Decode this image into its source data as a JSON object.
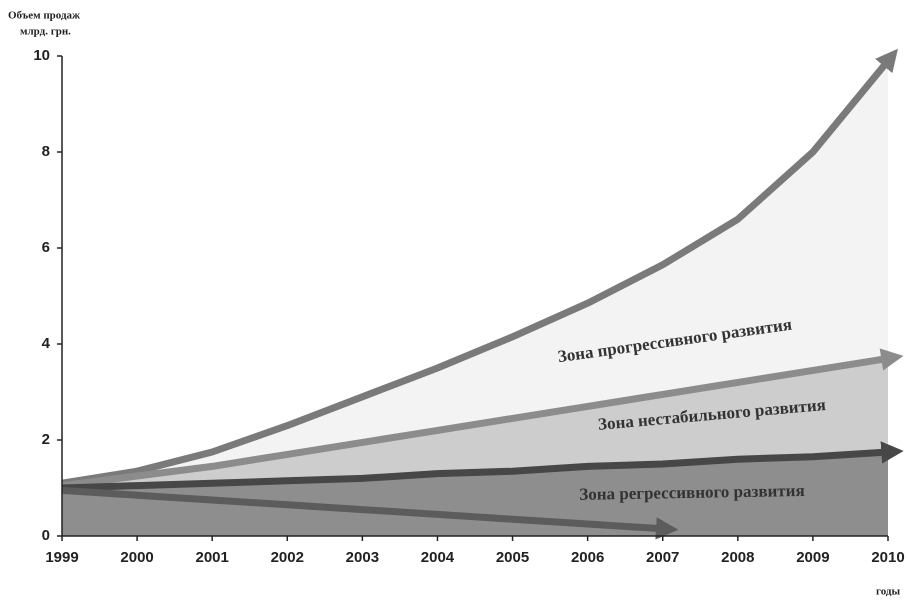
{
  "chart_data": {
    "type": "arrow-zones",
    "ylabel": [
      "Объем продаж",
      "млрд. грн."
    ],
    "xlabel": "годы",
    "x": [
      1999,
      2000,
      2001,
      2002,
      2003,
      2004,
      2005,
      2006,
      2007,
      2008,
      2009,
      2010
    ],
    "xlim": [
      1999,
      2010
    ],
    "xticks": [
      1999,
      2000,
      2001,
      2002,
      2003,
      2004,
      2005,
      2006,
      2007,
      2008,
      2009,
      2010
    ],
    "ylim": [
      0,
      10
    ],
    "yticks": [
      0,
      2,
      4,
      6,
      8,
      10
    ],
    "series": [
      {
        "color": "#7a7a7a",
        "fill": "#f3f3f3",
        "values": [
          1.1,
          1.35,
          1.75,
          2.3,
          2.9,
          3.5,
          4.15,
          4.85,
          5.65,
          6.6,
          8.0,
          9.9
        ]
      },
      {
        "color": "#8c8c8c",
        "fill": "#cdcdcd",
        "values": [
          1.05,
          1.25,
          1.45,
          1.7,
          1.95,
          2.2,
          2.45,
          2.7,
          2.95,
          3.2,
          3.45,
          3.7
        ]
      },
      {
        "color": "#474747",
        "fill": "#8e8e8e",
        "values": [
          1.0,
          1.05,
          1.1,
          1.15,
          1.2,
          1.3,
          1.35,
          1.45,
          1.5,
          1.6,
          1.65,
          1.75
        ]
      },
      {
        "color": "#5c5c5c",
        "values": [
          0.95,
          0.85,
          0.75,
          0.65,
          0.55,
          0.45,
          0.35,
          0.25,
          0.15,
          null,
          null,
          null
        ]
      }
    ],
    "annotations": [
      "Зона прогрессивного развития",
      "Зона нестабильного развития",
      "Зона регрессивного развития"
    ]
  }
}
